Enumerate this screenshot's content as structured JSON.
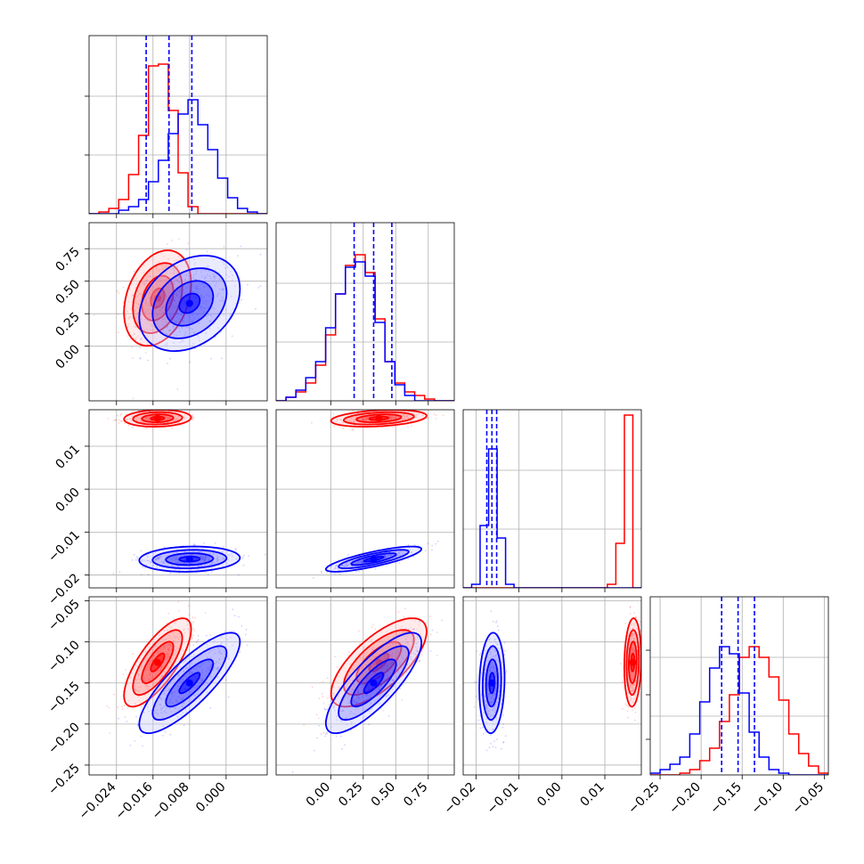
{
  "chart_data": {
    "type": "corner",
    "title": "",
    "colors": {
      "series_a": "#ff0000",
      "series_b": "#0000ff",
      "grid": "#b0b0b0"
    },
    "series": [
      {
        "color": "red"
      },
      {
        "color": "blue"
      }
    ],
    "grid": true,
    "parameters": [
      {
        "range": [
          -0.03,
          0.009
        ],
        "ticks": [
          "-0.024",
          "-0.016",
          "-0.008",
          "0.000"
        ],
        "tick_values": [
          -0.024,
          -0.016,
          -0.008,
          0.0
        ]
      },
      {
        "range": [
          -0.42,
          0.95
        ],
        "ticks": [
          "0.00",
          "0.25",
          "0.50",
          "0.75"
        ],
        "tick_values": [
          0.0,
          0.25,
          0.5,
          0.75
        ]
      },
      {
        "range": [
          -0.023,
          0.0185
        ],
        "ticks": [
          "-0.02",
          "-0.01",
          "0.00",
          "0.01"
        ],
        "tick_values": [
          -0.02,
          -0.01,
          0.0,
          0.01
        ]
      },
      {
        "range": [
          -0.262,
          -0.045
        ],
        "ticks": [
          "-0.25",
          "-0.20",
          "-0.15",
          "-0.10",
          "-0.05"
        ],
        "tick_values": [
          -0.25,
          -0.2,
          -0.15,
          -0.1,
          -0.05
        ]
      }
    ],
    "marginals": [
      {
        "quantile_lines": [
          -0.0175,
          -0.0125,
          -0.0075
        ],
        "hist_red": [
          0.0,
          0.01,
          0.03,
          0.08,
          0.22,
          0.44,
          0.83,
          0.84,
          0.58,
          0.23,
          0.04,
          0.0,
          0.0,
          0.0,
          0.0,
          0.0,
          0.0,
          0.0
        ],
        "hist_blue": [
          0.0,
          0.0,
          0.0,
          0.02,
          0.04,
          0.08,
          0.18,
          0.3,
          0.45,
          0.56,
          0.64,
          0.5,
          0.36,
          0.2,
          0.09,
          0.03,
          0.01,
          0.0
        ]
      },
      {
        "quantile_lines": [
          0.18,
          0.33,
          0.47
        ],
        "hist_red": [
          0.0,
          0.02,
          0.05,
          0.1,
          0.2,
          0.37,
          0.6,
          0.76,
          0.82,
          0.72,
          0.46,
          0.22,
          0.1,
          0.05,
          0.03,
          0.01,
          0.0,
          0.0
        ],
        "hist_blue": [
          0.0,
          0.02,
          0.06,
          0.13,
          0.22,
          0.41,
          0.6,
          0.75,
          0.78,
          0.7,
          0.44,
          0.22,
          0.09,
          0.03,
          0.0,
          0.0,
          0.0,
          0.0
        ]
      },
      {
        "quantile_lines": [
          -0.0175,
          -0.0163,
          -0.0152
        ],
        "hist_red": [
          0.0,
          0.0,
          0.0,
          0.0,
          0.0,
          0.0,
          0.0,
          0.0,
          0.0,
          0.0,
          0.0,
          0.0,
          0.0,
          0.0,
          0.0,
          0.0,
          0.0,
          0.02,
          0.25,
          0.97,
          0.0
        ],
        "hist_blue": [
          0.0,
          0.02,
          0.35,
          0.78,
          0.28,
          0.02,
          0.0,
          0.0,
          0.0,
          0.0,
          0.0,
          0.0,
          0.0,
          0.0,
          0.0,
          0.0,
          0.0,
          0.0,
          0.0,
          0.0,
          0.0
        ]
      },
      {
        "quantile_lines": [
          -0.175,
          -0.155,
          -0.135
        ],
        "hist_red": [
          0.0,
          0.0,
          0.0,
          0.01,
          0.03,
          0.08,
          0.15,
          0.3,
          0.45,
          0.66,
          0.72,
          0.66,
          0.55,
          0.42,
          0.23,
          0.12,
          0.05,
          0.01
        ],
        "hist_blue": [
          0.01,
          0.03,
          0.06,
          0.1,
          0.23,
          0.41,
          0.6,
          0.72,
          0.68,
          0.46,
          0.24,
          0.1,
          0.03,
          0.01,
          0.0,
          0.0,
          0.0,
          0.0
        ]
      }
    ],
    "distributions": {
      "red": {
        "mean": [
          -0.015,
          0.37,
          0.0165,
          -0.125
        ],
        "sd": [
          0.003,
          0.15,
          0.0008,
          0.022
        ]
      },
      "blue": {
        "mean": [
          -0.008,
          0.33,
          -0.0163,
          -0.15
        ],
        "sd": [
          0.0045,
          0.15,
          0.0012,
          0.025
        ]
      }
    },
    "correlations": {
      "red": {
        "1-0": 0.3,
        "2-0": 0.1,
        "2-1": 0.3,
        "3-0": 0.75,
        "3-1": 0.7,
        "3-2": 0.1
      },
      "blue": {
        "1-0": 0.3,
        "2-0": 0.1,
        "2-1": 0.8,
        "3-0": 0.82,
        "3-1": 0.8,
        "3-2": 0.1
      }
    }
  }
}
